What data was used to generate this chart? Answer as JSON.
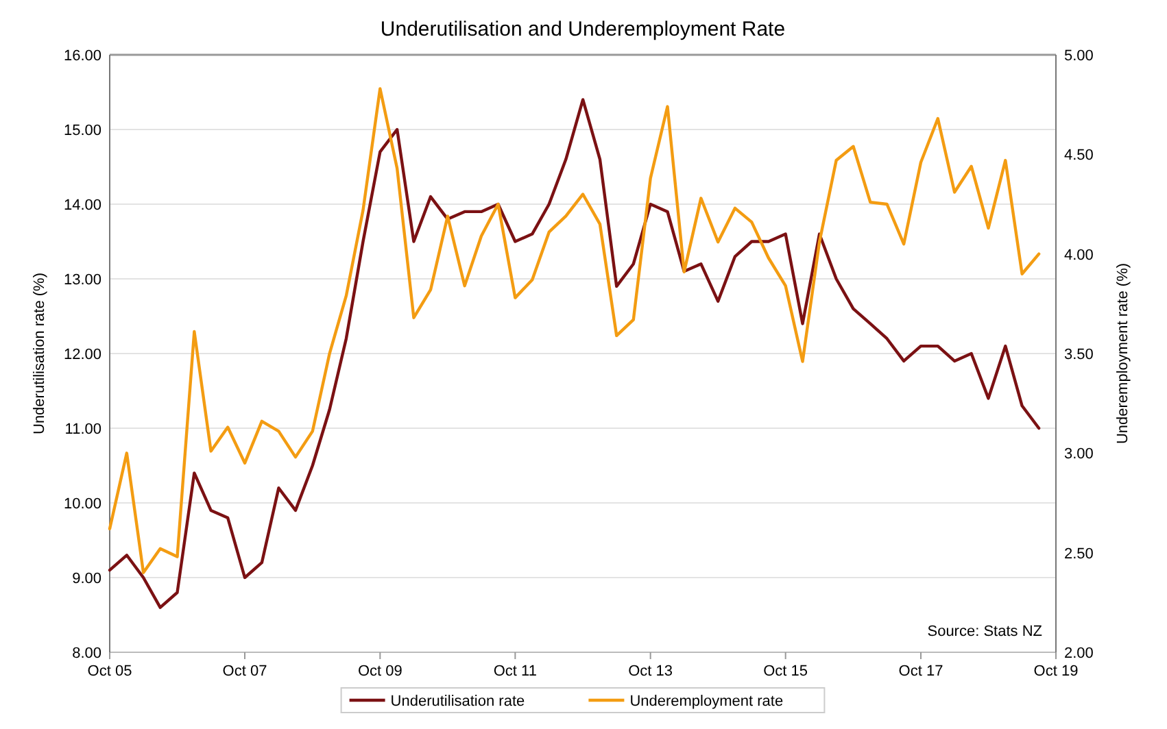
{
  "chart_data": {
    "type": "line",
    "title": "Underutilisation and Underemployment Rate",
    "ylabel": "Underutilisation rate (%)",
    "y2label": "Underemployment  rate (%)",
    "x": [
      "2005-10",
      "2006-01",
      "2006-04",
      "2006-07",
      "2006-10",
      "2007-01",
      "2007-04",
      "2007-07",
      "2007-10",
      "2008-01",
      "2008-04",
      "2008-07",
      "2008-10",
      "2009-01",
      "2009-04",
      "2009-07",
      "2009-10",
      "2010-01",
      "2010-04",
      "2010-07",
      "2010-10",
      "2011-01",
      "2011-04",
      "2011-07",
      "2011-10",
      "2012-01",
      "2012-04",
      "2012-07",
      "2012-10",
      "2013-01",
      "2013-04",
      "2013-07",
      "2013-10",
      "2014-01",
      "2014-04",
      "2014-07",
      "2014-10",
      "2015-01",
      "2015-04",
      "2015-07",
      "2015-10",
      "2016-01",
      "2016-04",
      "2016-07",
      "2016-10",
      "2017-01",
      "2017-04",
      "2017-07",
      "2017-10",
      "2018-01",
      "2018-04",
      "2018-07",
      "2018-10",
      "2019-01",
      "2019-04",
      "2019-07"
    ],
    "series": [
      {
        "name": "Underutilisation rate",
        "color": "#7b1113",
        "values": [
          9.1,
          9.3,
          9.0,
          8.6,
          8.8,
          10.4,
          9.9,
          9.8,
          9.0,
          9.2,
          10.2,
          9.9,
          10.5,
          11.25,
          12.2,
          13.5,
          14.7,
          15.0,
          13.5,
          14.1,
          13.8,
          13.9,
          13.9,
          14.0,
          13.5,
          13.6,
          14.0,
          14.6,
          15.4,
          14.6,
          12.9,
          13.2,
          14.0,
          13.9,
          13.1,
          13.2,
          12.7,
          13.3,
          13.5,
          13.5,
          13.6,
          12.4,
          13.6,
          13.0,
          12.6,
          12.4,
          12.2,
          11.9,
          12.1,
          12.1,
          11.9,
          12.0,
          11.4,
          12.1,
          11.3,
          11.0
        ]
      },
      {
        "name": "Underemployment rate",
        "color": "#f39c12",
        "axis": "y2",
        "values": [
          2.62,
          3.0,
          2.4,
          2.52,
          2.48,
          3.61,
          3.01,
          3.13,
          2.95,
          3.16,
          3.11,
          2.98,
          3.11,
          3.5,
          3.79,
          4.22,
          4.83,
          4.43,
          3.68,
          3.82,
          4.19,
          3.84,
          4.09,
          4.25,
          3.78,
          3.87,
          4.11,
          4.19,
          4.3,
          4.15,
          3.59,
          3.67,
          4.38,
          4.74,
          3.91,
          4.28,
          4.06,
          4.23,
          4.16,
          3.98,
          3.84,
          3.46,
          4.06,
          4.47,
          4.54,
          4.26,
          4.25,
          4.05,
          4.46,
          4.68,
          4.31,
          4.44,
          4.13,
          4.47,
          3.9,
          4.0
        ]
      }
    ],
    "xlim": [
      "2005-10",
      "2019-10"
    ],
    "xticks": [
      {
        "value": "2005-10",
        "label": "Oct 05"
      },
      {
        "value": "2007-10",
        "label": "Oct 07"
      },
      {
        "value": "2009-10",
        "label": "Oct 09"
      },
      {
        "value": "2011-10",
        "label": "Oct 11"
      },
      {
        "value": "2013-10",
        "label": "Oct 13"
      },
      {
        "value": "2015-10",
        "label": "Oct 15"
      },
      {
        "value": "2017-10",
        "label": "Oct 17"
      },
      {
        "value": "2019-10",
        "label": "Oct 19"
      }
    ],
    "ylim": [
      8,
      16
    ],
    "yticks": [
      {
        "value": 8,
        "label": "8.00"
      },
      {
        "value": 9,
        "label": "9.00"
      },
      {
        "value": 10,
        "label": "10.00"
      },
      {
        "value": 11,
        "label": "11.00"
      },
      {
        "value": 12,
        "label": "12.00"
      },
      {
        "value": 13,
        "label": "13.00"
      },
      {
        "value": 14,
        "label": "14.00"
      },
      {
        "value": 15,
        "label": "15.00"
      },
      {
        "value": 16,
        "label": "16.00"
      }
    ],
    "y2lim": [
      2,
      5
    ],
    "y2ticks": [
      {
        "value": 2,
        "label": "2.00"
      },
      {
        "value": 2.5,
        "label": "2.50"
      },
      {
        "value": 3,
        "label": "3.00"
      },
      {
        "value": 3.5,
        "label": "3.50"
      },
      {
        "value": 4,
        "label": "4.00"
      },
      {
        "value": 4.5,
        "label": "4.50"
      },
      {
        "value": 5,
        "label": "5.00"
      }
    ],
    "grid": "y",
    "legend": "bottom",
    "marker": "none",
    "line_style": "solid",
    "annotations": [
      "Source: Stats NZ"
    ]
  }
}
